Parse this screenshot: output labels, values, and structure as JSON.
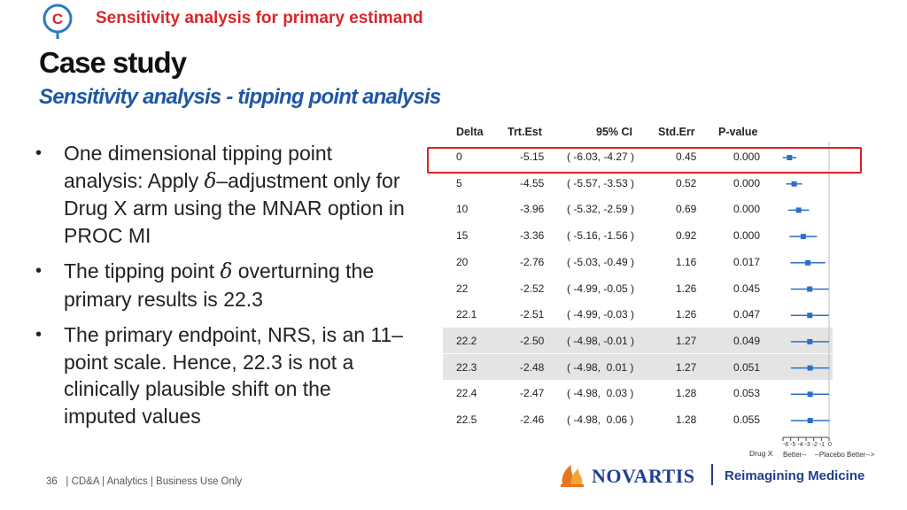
{
  "header": {
    "banner": "Sensitivity analysis for primary estimand",
    "title": "Case study",
    "subtitle": "Sensitivity analysis - tipping point analysis"
  },
  "bullets": [
    {
      "pre": "One dimensional tipping point analysis: Apply ",
      "sym": "δ",
      "post": "–adjustment only for Drug X arm using the MNAR option in PROC MI"
    },
    {
      "pre": "The tipping point ",
      "sym": "δ",
      "post": " overturning the primary results is 22.3"
    },
    {
      "pre": "The primary endpoint, NRS, is an 11–point scale. Hence, 22.3 is not a clinically plausible shift on the imputed values",
      "sym": "",
      "post": ""
    }
  ],
  "table": {
    "headers": {
      "delta": "Delta",
      "est": "Trt.Est",
      "ci": "95% CI",
      "se": "Std.Err",
      "p": "P-value"
    },
    "rows": [
      {
        "delta": "0",
        "est": "-5.15",
        "ci": "( -6.03, -4.27 )",
        "se": "0.45",
        "p": "0.000",
        "lo": -6.03,
        "hi": -4.27,
        "mid": -5.15,
        "shaded": false
      },
      {
        "delta": "5",
        "est": "-4.55",
        "ci": "( -5.57, -3.53 )",
        "se": "0.52",
        "p": "0.000",
        "lo": -5.57,
        "hi": -3.53,
        "mid": -4.55,
        "shaded": false
      },
      {
        "delta": "10",
        "est": "-3.96",
        "ci": "( -5.32, -2.59 )",
        "se": "0.69",
        "p": "0.000",
        "lo": -5.32,
        "hi": -2.59,
        "mid": -3.96,
        "shaded": false
      },
      {
        "delta": "15",
        "est": "-3.36",
        "ci": "( -5.16, -1.56 )",
        "se": "0.92",
        "p": "0.000",
        "lo": -5.16,
        "hi": -1.56,
        "mid": -3.36,
        "shaded": false
      },
      {
        "delta": "20",
        "est": "-2.76",
        "ci": "( -5.03, -0.49 )",
        "se": "1.16",
        "p": "0.017",
        "lo": -5.03,
        "hi": -0.49,
        "mid": -2.76,
        "shaded": false
      },
      {
        "delta": "22",
        "est": "-2.52",
        "ci": "( -4.99, -0.05 )",
        "se": "1.26",
        "p": "0.045",
        "lo": -4.99,
        "hi": -0.05,
        "mid": -2.52,
        "shaded": false
      },
      {
        "delta": "22.1",
        "est": "-2.51",
        "ci": "( -4.99, -0.03 )",
        "se": "1.26",
        "p": "0.047",
        "lo": -4.99,
        "hi": -0.03,
        "mid": -2.51,
        "shaded": false
      },
      {
        "delta": "22.2",
        "est": "-2.50",
        "ci": "( -4.98, -0.01 )",
        "se": "1.27",
        "p": "0.049",
        "lo": -4.98,
        "hi": -0.01,
        "mid": -2.5,
        "shaded": true
      },
      {
        "delta": "22.3",
        "est": "-2.48",
        "ci": "( -4.98,  0.01 )",
        "se": "1.27",
        "p": "0.051",
        "lo": -4.98,
        "hi": 0.01,
        "mid": -2.48,
        "shaded": true
      },
      {
        "delta": "22.4",
        "est": "-2.47",
        "ci": "( -4.98,  0.03 )",
        "se": "1.28",
        "p": "0.053",
        "lo": -4.98,
        "hi": 0.03,
        "mid": -2.47,
        "shaded": false
      },
      {
        "delta": "22.5",
        "est": "-2.46",
        "ci": "( -4.98,  0.06 )",
        "se": "1.28",
        "p": "0.055",
        "lo": -4.98,
        "hi": 0.06,
        "mid": -2.46,
        "shaded": false
      }
    ],
    "axis_ticks": "-6 -5 -4 -3 -2 -1  0",
    "axis_caption": "Better--    --Placebo Better-->",
    "drug_label": "Drug X"
  },
  "footer": {
    "page_number": "36",
    "text": "| CD&A | Analytics | Business Use Only"
  },
  "brand": {
    "name": "NOVARTIS",
    "tagline": "Reimagining Medicine"
  },
  "colors": {
    "accent_red": "#d9262b",
    "brand_blue": "#1f3f8f",
    "marker_blue": "#2a6fc9",
    "subtitle_blue": "#1f57a4"
  }
}
